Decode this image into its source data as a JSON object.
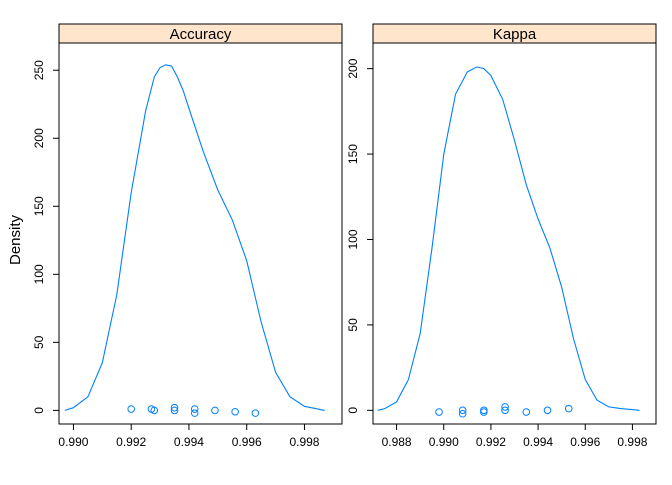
{
  "ylabel": "Density",
  "chart_data": [
    {
      "type": "line",
      "title": "Accuracy",
      "xlabel": "",
      "ylabel": "Density",
      "xlim": [
        0.9895,
        0.9993
      ],
      "ylim": [
        -10,
        270
      ],
      "x_ticks": [
        0.99,
        0.992,
        0.994,
        0.996,
        0.998
      ],
      "x_tick_labels": [
        "0.990",
        "0.992",
        "0.994",
        "0.996",
        "0.998"
      ],
      "y_ticks": [
        0,
        50,
        100,
        150,
        200,
        250
      ],
      "y_tick_labels": [
        "0",
        "50",
        "100",
        "150",
        "200",
        "250"
      ],
      "density_curve": {
        "x": [
          0.9897,
          0.99,
          0.9905,
          0.991,
          0.9915,
          0.992,
          0.9925,
          0.9928,
          0.993,
          0.9932,
          0.9934,
          0.9936,
          0.9938,
          0.994,
          0.9945,
          0.995,
          0.9955,
          0.996,
          0.9965,
          0.997,
          0.9975,
          0.998,
          0.9987
        ],
        "y": [
          0,
          2,
          10,
          35,
          85,
          160,
          220,
          245,
          252,
          254,
          253,
          245,
          235,
          222,
          190,
          162,
          140,
          110,
          65,
          28,
          10,
          3,
          0
        ]
      },
      "points": {
        "x": [
          0.992,
          0.9927,
          0.9928,
          0.9935,
          0.9935,
          0.9942,
          0.9942,
          0.9949,
          0.9956,
          0.9963
        ],
        "y": [
          1,
          1,
          0,
          2,
          0,
          1,
          -2,
          0,
          -1,
          -2
        ]
      },
      "colors": {
        "line": "#0080ff",
        "strip_bg": "#ffe5cc"
      }
    },
    {
      "type": "line",
      "title": "Kappa",
      "xlabel": "",
      "ylabel": "",
      "xlim": [
        0.987,
        0.999
      ],
      "ylim": [
        -8,
        215
      ],
      "x_ticks": [
        0.988,
        0.99,
        0.992,
        0.994,
        0.996,
        0.998
      ],
      "x_tick_labels": [
        "0.988",
        "0.990",
        "0.992",
        "0.994",
        "0.996",
        "0.998"
      ],
      "y_ticks": [
        0,
        50,
        100,
        150,
        200
      ],
      "y_tick_labels": [
        "0",
        "50",
        "100",
        "150",
        "200"
      ],
      "density_curve": {
        "x": [
          0.9872,
          0.9875,
          0.988,
          0.9885,
          0.989,
          0.9895,
          0.99,
          0.9905,
          0.991,
          0.9914,
          0.9917,
          0.992,
          0.9925,
          0.993,
          0.9935,
          0.994,
          0.9945,
          0.995,
          0.9955,
          0.996,
          0.9965,
          0.997,
          0.9975,
          0.9983
        ],
        "y": [
          0,
          1,
          5,
          18,
          45,
          95,
          150,
          185,
          198,
          201,
          200,
          196,
          182,
          158,
          132,
          112,
          95,
          72,
          42,
          18,
          6,
          2,
          1,
          0
        ]
      },
      "points": {
        "x": [
          0.9898,
          0.9908,
          0.9908,
          0.9917,
          0.9917,
          0.9926,
          0.9926,
          0.9935,
          0.9944,
          0.9953
        ],
        "y": [
          -1,
          0,
          -2,
          0,
          -1,
          2,
          0,
          -1,
          0,
          1
        ]
      },
      "colors": {
        "line": "#0080ff",
        "strip_bg": "#ffe5cc"
      }
    }
  ]
}
